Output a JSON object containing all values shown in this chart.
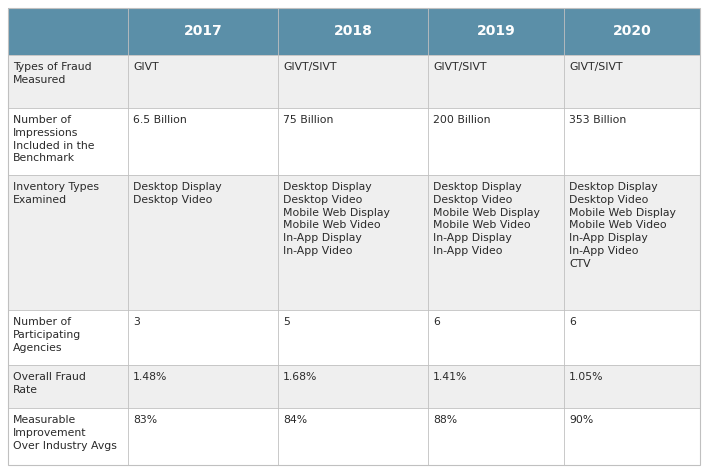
{
  "header_bg": "#5b8fa8",
  "header_text_color": "#ffffff",
  "row_bg_odd": "#efefef",
  "row_bg_even": "#ffffff",
  "cell_text_color": "#2a2a2a",
  "border_color": "#c0c0c0",
  "header_years": [
    "2017",
    "2018",
    "2019",
    "2020"
  ],
  "row_labels": [
    "Types of Fraud\nMeasured",
    "Number of\nImpressions\nIncluded in the\nBenchmark",
    "Inventory Types\nExamined",
    "Number of\nParticipating\nAgencies",
    "Overall Fraud\nRate",
    "Measurable\nImprovement\nOver Industry Avgs"
  ],
  "cell_data": [
    [
      "GIVT",
      "GIVT/SIVT",
      "GIVT/SIVT",
      "GIVT/SIVT"
    ],
    [
      "6.5 Billion",
      "75 Billion",
      "200 Billion",
      "353 Billion"
    ],
    [
      "Desktop Display\nDesktop Video",
      "Desktop Display\nDesktop Video\nMobile Web Display\nMobile Web Video\nIn-App Display\nIn-App Video",
      "Desktop Display\nDesktop Video\nMobile Web Display\nMobile Web Video\nIn-App Display\nIn-App Video",
      "Desktop Display\nDesktop Video\nMobile Web Display\nMobile Web Video\nIn-App Display\nIn-App Video\nCTV"
    ],
    [
      "3",
      "5",
      "6",
      "6"
    ],
    [
      "1.48%",
      "1.68%",
      "1.41%",
      "1.05%"
    ],
    [
      "83%",
      "84%",
      "88%",
      "90%"
    ]
  ],
  "figsize": [
    7.07,
    4.73
  ],
  "dpi": 100,
  "font_size_header": 10,
  "font_size_cell": 7.8
}
